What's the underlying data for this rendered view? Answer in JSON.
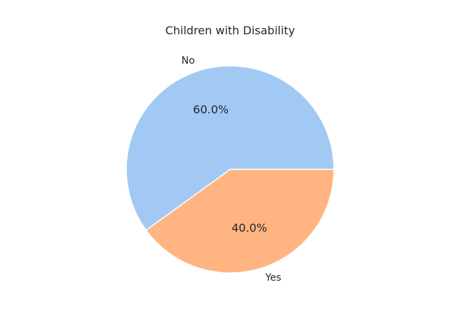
{
  "chart_data": {
    "type": "pie",
    "title": "Children with Disability",
    "categories": [
      "No",
      "Yes"
    ],
    "values": [
      60.0,
      40.0
    ],
    "percent_labels": [
      "60.0%",
      "40.0%"
    ],
    "colors": [
      "#a1c9f4",
      "#ffb482"
    ],
    "start_angle_deg": 0,
    "direction": "counterclockwise",
    "edge_color": "#ffffff"
  }
}
